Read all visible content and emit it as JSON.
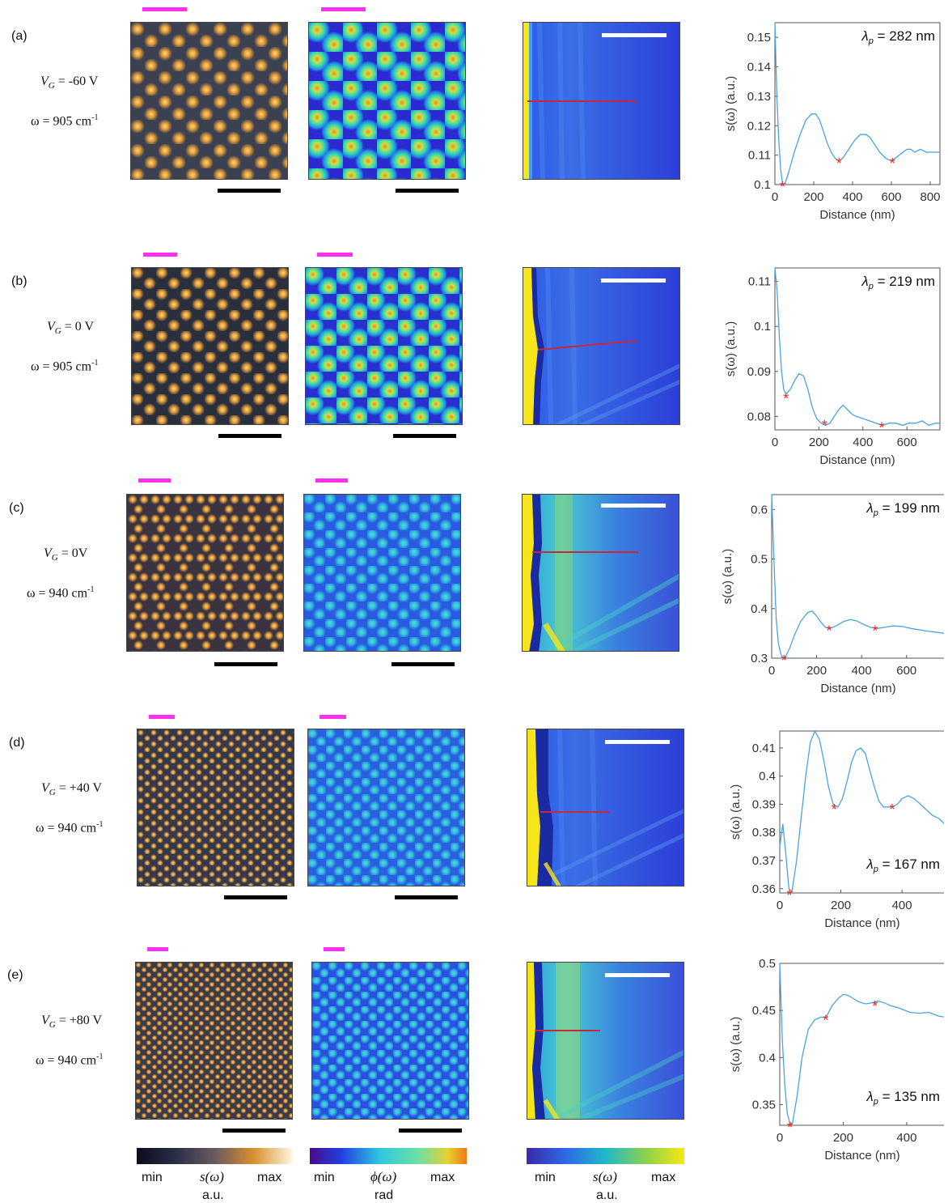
{
  "colors": {
    "magenta": "#ff2ef0",
    "plot_line": "#4aa3df",
    "marker": "#ff2020"
  },
  "panels": [
    {
      "label": "(a)",
      "vg": "V_G = -60 V",
      "vg_sym": "V",
      "vg_sub": "G",
      "vg_val": " = -60 V",
      "omega": "ω = 905 cm",
      "omega_sup": "-1",
      "lambda_sym": "λ",
      "lambda_sub": "p",
      "lambda_val": " = 282 nm"
    },
    {
      "label": "(b)",
      "vg_sym": "V",
      "vg_sub": "G",
      "vg_val": " = 0 V",
      "omega": "ω = 905 cm",
      "omega_sup": "-1",
      "lambda_sym": "λ",
      "lambda_sub": "p",
      "lambda_val": " = 219 nm"
    },
    {
      "label": "(c)",
      "vg_sym": "V",
      "vg_sub": "G",
      "vg_val": " = 0V",
      "omega": "ω = 940 cm",
      "omega_sup": "-1",
      "lambda_sym": "λ",
      "lambda_sub": "p",
      "lambda_val": " = 199 nm"
    },
    {
      "label": "(d)",
      "vg_sym": "V",
      "vg_sub": "G",
      "vg_val": " = +40 V",
      "omega": "ω = 940 cm",
      "omega_sup": "-1",
      "lambda_sym": "λ",
      "lambda_sub": "p",
      "lambda_val": " = 167 nm"
    },
    {
      "label": "(e)",
      "vg_sym": "V",
      "vg_sub": "G",
      "vg_val": " = +80 V",
      "omega": "ω = 940 cm",
      "omega_sup": "-1",
      "lambda_sym": "λ",
      "lambda_sub": "p",
      "lambda_val": " = 135 nm"
    }
  ],
  "axis": {
    "xlabel": "Distance (nm)",
    "ylabel": "s(ω) (a.u.)"
  },
  "colorbars": [
    {
      "min": "min",
      "mid": "s(ω)",
      "max": "max",
      "unit": "a.u."
    },
    {
      "min": "min",
      "mid": "ϕ(ω)",
      "max": "max",
      "unit": "rad"
    },
    {
      "min": "min",
      "mid": "s(ω)",
      "max": "max",
      "unit": "a.u."
    }
  ],
  "chart_data": [
    {
      "type": "line",
      "xlabel": "Distance (nm)",
      "ylabel": "s(ω) (a.u.)",
      "xlim": [
        0,
        850
      ],
      "ylim": [
        0.1,
        0.155
      ],
      "xticks": [
        0,
        200,
        400,
        600,
        800
      ],
      "yticks": [
        0.1,
        0.11,
        0.12,
        0.13,
        0.14,
        0.15
      ],
      "ytick_labels": [
        "0.1",
        "0.11",
        "0.12",
        "0.13",
        "0.14",
        "0.15"
      ],
      "x": [
        0,
        10,
        20,
        30,
        40,
        50,
        70,
        100,
        130,
        160,
        190,
        210,
        230,
        250,
        270,
        290,
        310,
        330,
        350,
        380,
        410,
        440,
        470,
        490,
        510,
        540,
        570,
        600,
        620,
        640,
        660,
        680,
        700,
        720,
        750,
        780,
        810,
        850
      ],
      "y": [
        0.155,
        0.13,
        0.115,
        0.105,
        0.1,
        0.1,
        0.104,
        0.111,
        0.117,
        0.122,
        0.124,
        0.124,
        0.122,
        0.118,
        0.114,
        0.111,
        0.109,
        0.108,
        0.109,
        0.112,
        0.115,
        0.117,
        0.117,
        0.116,
        0.114,
        0.111,
        0.109,
        0.108,
        0.109,
        0.11,
        0.111,
        0.112,
        0.112,
        0.111,
        0.112,
        0.111,
        0.111,
        0.111
      ],
      "markers": [
        [
          40,
          0.1
        ],
        [
          330,
          0.108
        ],
        [
          605,
          0.108
        ]
      ],
      "annotation": "λp = 282 nm"
    },
    {
      "type": "line",
      "xlabel": "Distance (nm)",
      "ylabel": "s(ω) (a.u.)",
      "xlim": [
        0,
        750
      ],
      "ylim": [
        0.077,
        0.113
      ],
      "xticks": [
        0,
        200,
        400,
        600
      ],
      "yticks": [
        0.08,
        0.09,
        0.1,
        0.11
      ],
      "ytick_labels": [
        "0.08",
        "0.09",
        "0.1",
        "0.11"
      ],
      "x": [
        0,
        10,
        20,
        30,
        40,
        50,
        70,
        90,
        110,
        130,
        150,
        170,
        190,
        210,
        230,
        250,
        270,
        290,
        310,
        330,
        350,
        370,
        400,
        430,
        460,
        490,
        520,
        550,
        580,
        610,
        640,
        670,
        700,
        730,
        750
      ],
      "y": [
        0.113,
        0.108,
        0.098,
        0.09,
        0.086,
        0.085,
        0.086,
        0.088,
        0.0895,
        0.089,
        0.086,
        0.082,
        0.0795,
        0.0785,
        0.078,
        0.0785,
        0.08,
        0.0815,
        0.0825,
        0.0815,
        0.0805,
        0.08,
        0.0795,
        0.079,
        0.0785,
        0.078,
        0.0785,
        0.0785,
        0.078,
        0.0785,
        0.0785,
        0.079,
        0.078,
        0.0785,
        0.0785
      ],
      "markers": [
        [
          50,
          0.0845
        ],
        [
          225,
          0.0785
        ],
        [
          485,
          0.078
        ]
      ],
      "annotation": "λp = 219 nm"
    },
    {
      "type": "line",
      "xlabel": "Distance (nm)",
      "ylabel": "s(ω) (a.u.)",
      "xlim": [
        0,
        770
      ],
      "ylim": [
        0.3,
        0.63
      ],
      "xticks": [
        0,
        200,
        400,
        600
      ],
      "yticks": [
        0.3,
        0.4,
        0.5,
        0.6
      ],
      "ytick_labels": [
        "0.3",
        "0.4",
        "0.5",
        "0.6"
      ],
      "x": [
        0,
        10,
        20,
        30,
        40,
        50,
        60,
        80,
        100,
        130,
        160,
        180,
        200,
        220,
        240,
        260,
        290,
        320,
        350,
        380,
        410,
        440,
        470,
        500,
        540,
        580,
        620,
        660,
        700,
        740,
        770
      ],
      "y": [
        0.63,
        0.5,
        0.38,
        0.33,
        0.31,
        0.3,
        0.302,
        0.32,
        0.345,
        0.375,
        0.392,
        0.395,
        0.385,
        0.372,
        0.362,
        0.36,
        0.366,
        0.374,
        0.378,
        0.375,
        0.368,
        0.362,
        0.36,
        0.362,
        0.365,
        0.364,
        0.36,
        0.357,
        0.354,
        0.352,
        0.35
      ],
      "markers": [
        [
          55,
          0.3
        ],
        [
          255,
          0.36
        ],
        [
          460,
          0.36
        ]
      ],
      "annotation": "λp = 199 nm"
    },
    {
      "type": "line",
      "xlabel": "Distance (nm)",
      "ylabel": "s(ω) (a.u.)",
      "xlim": [
        0,
        540
      ],
      "ylim": [
        0.3585,
        0.416
      ],
      "xticks": [
        0,
        200,
        400
      ],
      "yticks": [
        0.36,
        0.37,
        0.38,
        0.39,
        0.4,
        0.41
      ],
      "ytick_labels": [
        "0.36",
        "0.37",
        "0.38",
        "0.39",
        "0.4",
        "0.41"
      ],
      "x": [
        0,
        10,
        20,
        30,
        40,
        55,
        70,
        85,
        100,
        115,
        130,
        145,
        160,
        175,
        190,
        205,
        220,
        235,
        250,
        265,
        280,
        295,
        310,
        325,
        340,
        355,
        370,
        385,
        400,
        420,
        440,
        460,
        480,
        500,
        520,
        540
      ],
      "y": [
        0.375,
        0.383,
        0.372,
        0.36,
        0.359,
        0.37,
        0.385,
        0.4,
        0.412,
        0.416,
        0.413,
        0.405,
        0.396,
        0.39,
        0.389,
        0.392,
        0.398,
        0.405,
        0.409,
        0.41,
        0.408,
        0.402,
        0.396,
        0.391,
        0.389,
        0.389,
        0.389,
        0.39,
        0.392,
        0.393,
        0.392,
        0.39,
        0.388,
        0.386,
        0.385,
        0.383
      ],
      "markers": [
        [
          32,
          0.3585
        ],
        [
          178,
          0.389
        ],
        [
          368,
          0.389
        ]
      ],
      "annotation": "λp = 167 nm"
    },
    {
      "type": "line",
      "xlabel": "Distance (nm)",
      "ylabel": "s(ω) (a.u.)",
      "xlim": [
        0,
        520
      ],
      "ylim": [
        0.328,
        0.5
      ],
      "xticks": [
        0,
        200,
        400
      ],
      "yticks": [
        0.35,
        0.4,
        0.45,
        0.5
      ],
      "ytick_labels": [
        "0.35",
        "0.4",
        "0.45",
        "0.5"
      ],
      "x": [
        0,
        8,
        16,
        24,
        32,
        40,
        55,
        70,
        90,
        110,
        130,
        145,
        165,
        185,
        200,
        215,
        230,
        250,
        270,
        290,
        310,
        330,
        350,
        380,
        410,
        440,
        470,
        500,
        520
      ],
      "y": [
        0.5,
        0.42,
        0.37,
        0.34,
        0.33,
        0.33,
        0.36,
        0.4,
        0.43,
        0.44,
        0.443,
        0.442,
        0.455,
        0.463,
        0.467,
        0.466,
        0.463,
        0.459,
        0.457,
        0.458,
        0.46,
        0.458,
        0.455,
        0.452,
        0.448,
        0.447,
        0.448,
        0.444,
        0.443
      ],
      "markers": [
        [
          32,
          0.328
        ],
        [
          145,
          0.442
        ],
        [
          300,
          0.457
        ]
      ],
      "annotation": "λp = 135 nm"
    }
  ]
}
